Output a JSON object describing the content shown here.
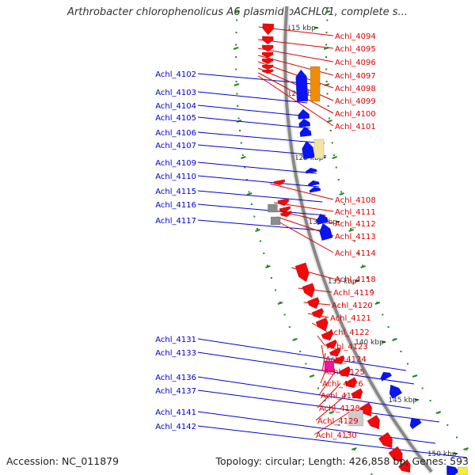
{
  "title": "Arthrobacter chlorophenolicus A6 plasmid pACHL01, complete s...",
  "footer": {
    "accession": "Accession: NC_011879",
    "summary": "Topology: circular; Length: 426,858 bp; Genes: 593"
  },
  "colors": {
    "backbone": "#888888",
    "tick_dots": "#228b22",
    "left_labels": "#0000cc",
    "right_labels": "#dd0000",
    "blue_gene": "#0a14f0",
    "red_gene": "#f00a0a",
    "orange_gene": "#f08c0a",
    "pale_yellow_gene": "#f0e6a0",
    "gray_gene": "#8c8c8c",
    "magenta_gene": "#f014a0"
  },
  "tick_labels": [
    "115 kbp",
    "120 kbp",
    "125 kbp",
    "130 kbp",
    "135 kbp",
    "140 kbp",
    "145 kbp",
    "150 kbp"
  ],
  "left_genes": [
    "Achl_4102",
    "Achl_4103",
    "Achl_4104",
    "Achl_4105",
    "Achl_4106",
    "Achl_4107",
    "Achl_4109",
    "Achl_4110",
    "Achl_4115",
    "Achl_4116",
    "Achl_4117",
    "Achl_4131",
    "Achl_4133",
    "Achl_4136",
    "Achl_4137",
    "Achl_4141",
    "Achl_4142"
  ],
  "right_genes": [
    "Achl_4094",
    "Achl_4095",
    "Achl_4096",
    "Achl_4097",
    "Achl_4098",
    "Achl_4099",
    "Achl_4100",
    "Achl_4101",
    "Achl_4108",
    "Achl_4111",
    "Achl_4112",
    "Achl_4113",
    "Achl_4114",
    "Achl_4118",
    "Achl_4119",
    "Achl_4120",
    "Achl_4121",
    "Achl_4122",
    "Achl_4123",
    "Achl_4124",
    "Achl_4125",
    "Achl_4126",
    "Achl_4127",
    "Achl_4128",
    "Achl_4129",
    "Achl_4130"
  ]
}
